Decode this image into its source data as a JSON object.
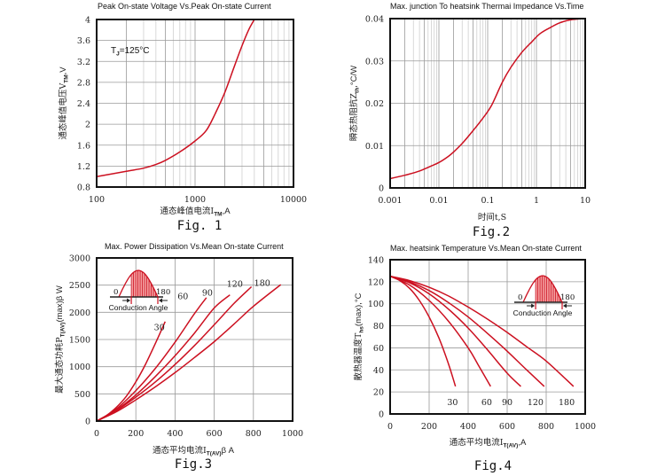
{
  "colors": {
    "curve": "#cc1020",
    "frame": "#111111",
    "grid_major": "#9a9a9a",
    "grid_minor": "#cfcfcf"
  },
  "chart_data": [
    {
      "id": "fig1",
      "type": "line",
      "title": "Peak On-state Voltage Vs.Peak On-state Current",
      "xlabel": "通态峰值电流I",
      "xlabel_sub": "TM",
      "xlabel_suffix": ",A",
      "ylabel": "通态峰值电压V",
      "ylabel_sub": "TM",
      "ylabel_suffix": ",V",
      "xscale": "log",
      "xlim": [
        100,
        10000
      ],
      "ylim": [
        0.8,
        4
      ],
      "xticks": [
        100,
        1000,
        10000
      ],
      "xtick_labels": [
        "100",
        "1000",
        "10000"
      ],
      "yticks": [
        0.8,
        1.2,
        1.6,
        2,
        2.4,
        2.8,
        3.2,
        3.6,
        4
      ],
      "ytick_labels": [
        "0.8",
        "1.2",
        "1.6",
        "2",
        "2.4",
        "2.8",
        "3.2",
        "3.6",
        "4"
      ],
      "grid": true,
      "annotation": "T",
      "annotation_sub": "J",
      "annotation_suffix": "=125°C",
      "caption": "Fig. 1",
      "series": [
        {
          "name": "Tj=125°C",
          "x": [
            100,
            200,
            300,
            400,
            500,
            700,
            1000,
            1300,
            1600,
            2000,
            2500,
            3000,
            3500,
            4000
          ],
          "y": [
            1.0,
            1.1,
            1.16,
            1.23,
            1.31,
            1.47,
            1.68,
            1.88,
            2.2,
            2.6,
            3.1,
            3.5,
            3.8,
            4.0
          ]
        }
      ]
    },
    {
      "id": "fig2",
      "type": "line",
      "title": "Max. junction To heatsink Thermai Impedance Vs.Time",
      "xlabel": "时间t,S",
      "ylabel": "瞬态热阻抗Z",
      "ylabel_sub": "th",
      "ylabel_suffix": ",°C/W",
      "xscale": "log",
      "xlim": [
        0.001,
        10
      ],
      "ylim": [
        0,
        0.04
      ],
      "xticks": [
        0.001,
        0.01,
        0.1,
        1,
        10
      ],
      "xtick_labels": [
        "0.001",
        "0.01",
        "0.1",
        "1",
        "10"
      ],
      "yticks": [
        0,
        0.01,
        0.02,
        0.03,
        0.04
      ],
      "ytick_labels": [
        "0",
        "0.01",
        "0.02",
        "0.03",
        "0.04"
      ],
      "grid": true,
      "caption": "Fig.2",
      "series": [
        {
          "name": "Zth",
          "x": [
            0.001,
            0.002,
            0.004,
            0.007,
            0.01,
            0.015,
            0.02,
            0.03,
            0.05,
            0.08,
            0.12,
            0.2,
            0.3,
            0.5,
            0.8,
            1.2,
            2,
            3,
            5,
            10
          ],
          "y": [
            0.0022,
            0.003,
            0.004,
            0.0052,
            0.006,
            0.0073,
            0.0085,
            0.0105,
            0.0135,
            0.0165,
            0.0195,
            0.025,
            0.0285,
            0.032,
            0.0345,
            0.0365,
            0.038,
            0.039,
            0.0397,
            0.04
          ]
        }
      ]
    },
    {
      "id": "fig3",
      "type": "line",
      "title": "Max. Power Dissipation Vs.Mean On-state Current",
      "xlabel": "通态平均电流I",
      "xlabel_sub": "T(AV)",
      "xlabel_suffix": "β A",
      "ylabel": "最大通态功耗P",
      "ylabel_sub": "T(AV)",
      "ylabel_suffix": "(max)β W",
      "xlim": [
        0,
        1000
      ],
      "ylim": [
        0,
        3000
      ],
      "xticks": [
        0,
        200,
        400,
        600,
        800,
        1000
      ],
      "xtick_labels": [
        "0",
        "200",
        "400",
        "600",
        "800",
        "1000"
      ],
      "yticks": [
        0,
        500,
        1000,
        1500,
        2000,
        2500,
        3000
      ],
      "ytick_labels": [
        "0",
        "500",
        "1000",
        "1500",
        "2000",
        "2500",
        "3000"
      ],
      "grid": true,
      "caption": "Fig.3",
      "inset": {
        "left_label": "0",
        "right_label": "180",
        "caption": "Conduction Angle"
      },
      "series": [
        {
          "name": "30",
          "label": "30",
          "x": [
            0,
            50,
            100,
            150,
            200,
            250,
            300,
            350
          ],
          "y": [
            0,
            100,
            250,
            450,
            720,
            1050,
            1430,
            1830
          ]
        },
        {
          "name": "60",
          "label": "60",
          "x": [
            0,
            100,
            200,
            300,
            400,
            500,
            560
          ],
          "y": [
            0,
            220,
            560,
            970,
            1450,
            1980,
            2270
          ]
        },
        {
          "name": "90",
          "label": "90",
          "x": [
            0,
            100,
            200,
            300,
            400,
            500,
            600,
            680
          ],
          "y": [
            0,
            200,
            480,
            820,
            1200,
            1620,
            2080,
            2320
          ]
        },
        {
          "name": "120",
          "label": "120",
          "x": [
            0,
            100,
            200,
            300,
            400,
            500,
            600,
            700,
            790
          ],
          "y": [
            0,
            190,
            440,
            720,
            1040,
            1390,
            1770,
            2160,
            2470
          ]
        },
        {
          "name": "180",
          "label": "180",
          "x": [
            0,
            100,
            200,
            300,
            400,
            500,
            600,
            700,
            800,
            940
          ],
          "y": [
            0,
            170,
            390,
            630,
            890,
            1170,
            1460,
            1780,
            2110,
            2510
          ]
        }
      ],
      "label_positions": [
        [
          320,
          1670
        ],
        [
          440,
          2240
        ],
        [
          565,
          2310
        ],
        [
          705,
          2470
        ],
        [
          845,
          2490
        ]
      ]
    },
    {
      "id": "fig4",
      "type": "line",
      "title": "Max. heatsink Temperature Vs.Mean On-state Current",
      "xlabel": "通态平均电流I",
      "xlabel_sub": "T(AV)",
      "xlabel_suffix": ",A",
      "ylabel": "散热器温度T",
      "ylabel_sub": "hs",
      "ylabel_suffix": "(max),°C",
      "xlim": [
        0,
        1000
      ],
      "ylim": [
        0,
        140
      ],
      "xticks": [
        0,
        200,
        400,
        600,
        800,
        1000
      ],
      "xtick_labels": [
        "0",
        "200",
        "400",
        "600",
        "800",
        "1000"
      ],
      "yticks": [
        0,
        20,
        40,
        60,
        80,
        100,
        120,
        140
      ],
      "ytick_labels": [
        "0",
        "20",
        "40",
        "60",
        "80",
        "100",
        "120",
        "140"
      ],
      "grid": true,
      "caption": "Fig.4",
      "inset": {
        "left_label": "0",
        "right_label": "180",
        "caption": "Conduction Angle"
      },
      "series": [
        {
          "name": "30",
          "label": "30",
          "x": [
            0,
            50,
            100,
            150,
            200,
            250,
            300,
            335
          ],
          "y": [
            125,
            121,
            114,
            103,
            88,
            69,
            45,
            25
          ]
        },
        {
          "name": "60",
          "label": "60",
          "x": [
            0,
            100,
            200,
            300,
            400,
            450,
            515
          ],
          "y": [
            125,
            117,
            103,
            84,
            60,
            45,
            25
          ]
        },
        {
          "name": "90",
          "label": "90",
          "x": [
            0,
            100,
            200,
            300,
            400,
            500,
            600,
            670
          ],
          "y": [
            125,
            119,
            109,
            95,
            78,
            58,
            37,
            25
          ]
        },
        {
          "name": "120",
          "label": "120",
          "x": [
            0,
            100,
            200,
            300,
            400,
            500,
            600,
            700,
            790
          ],
          "y": [
            125,
            120,
            112,
            101,
            88,
            73,
            57,
            40,
            25
          ]
        },
        {
          "name": "180",
          "label": "180",
          "x": [
            0,
            100,
            200,
            300,
            400,
            500,
            600,
            700,
            800,
            940
          ],
          "y": [
            125,
            121,
            115,
            107,
            97,
            86,
            74,
            61,
            48,
            25
          ]
        }
      ],
      "label_positions": [
        [
          320,
          8
        ],
        [
          495,
          8
        ],
        [
          600,
          8
        ],
        [
          745,
          8
        ],
        [
          905,
          8
        ]
      ]
    }
  ]
}
